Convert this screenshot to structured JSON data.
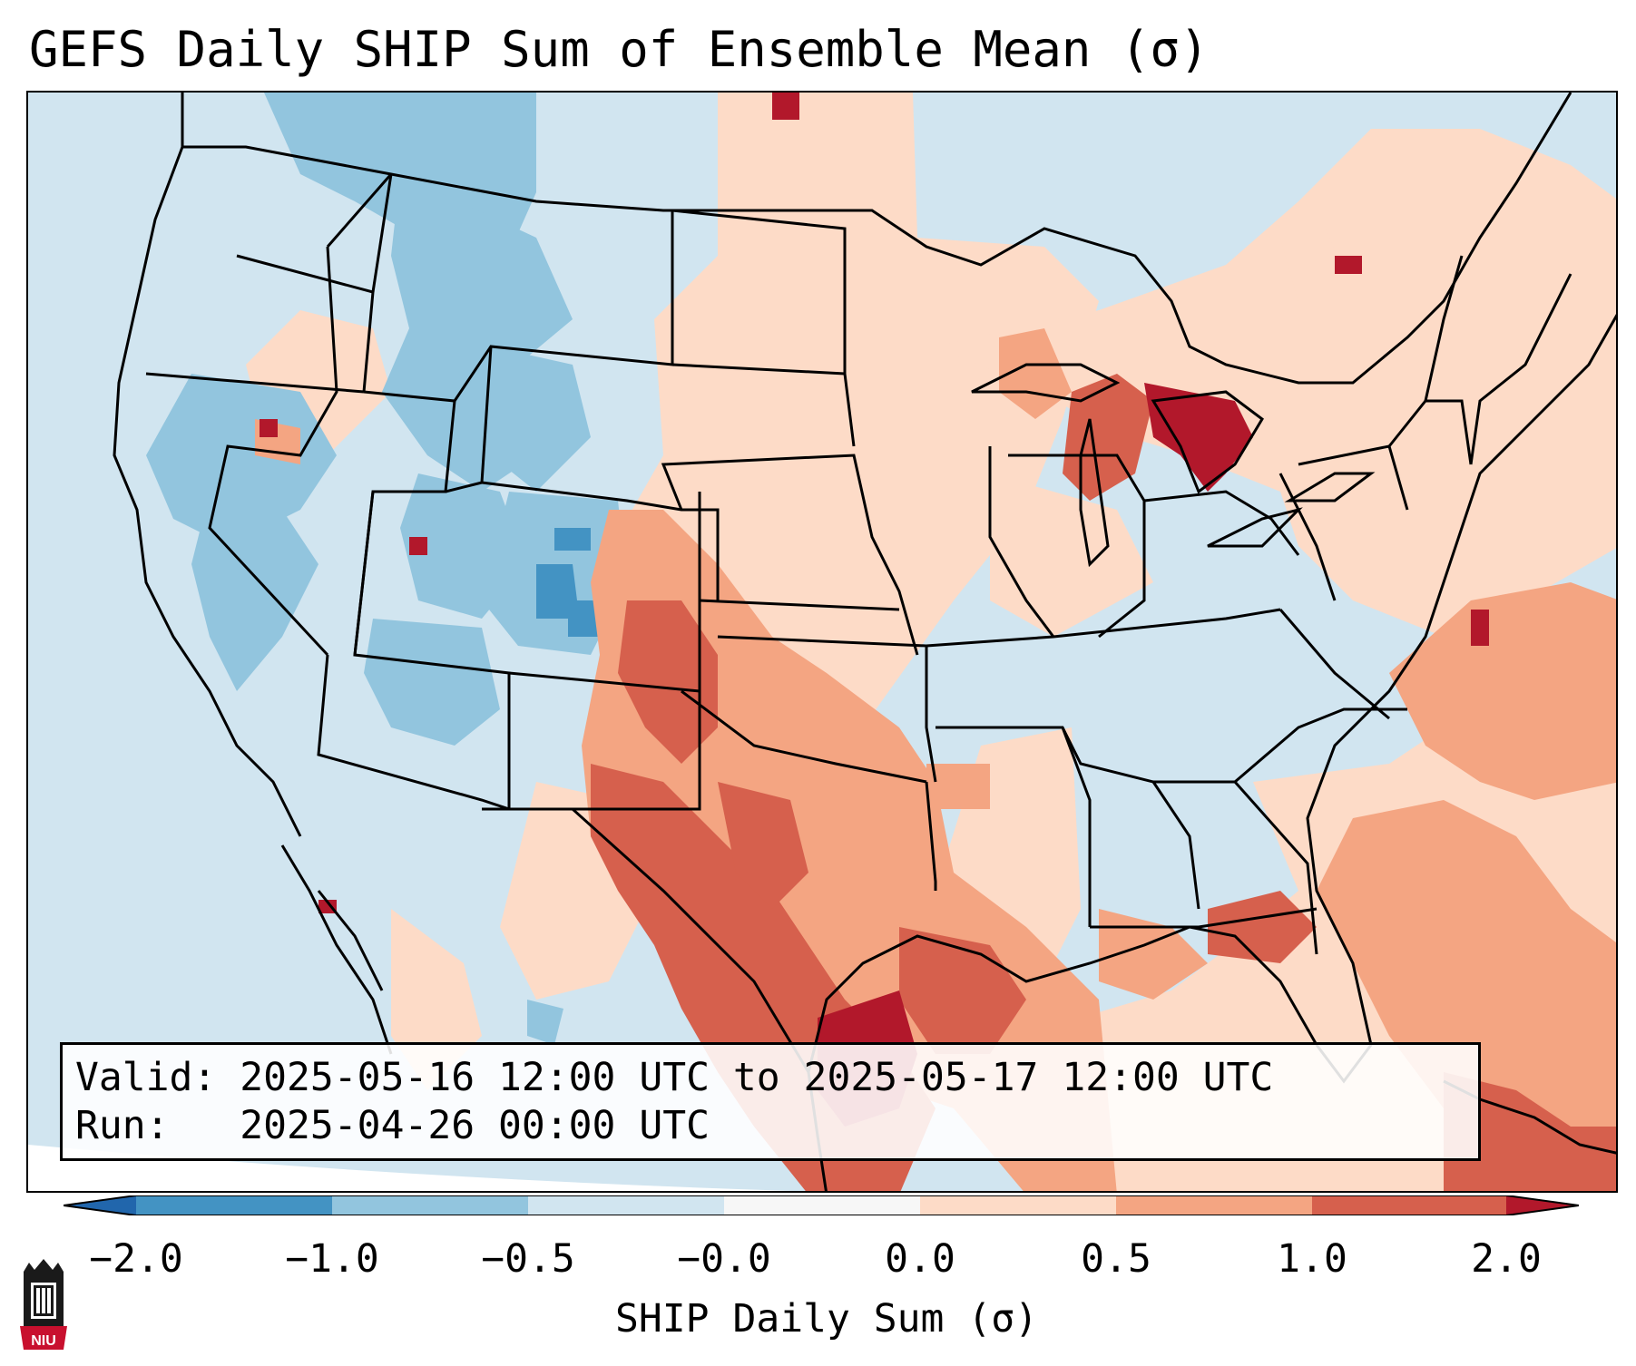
{
  "title": "GEFS Daily SHIP Sum of Ensemble Mean (σ)",
  "info": {
    "valid_label": "Valid:",
    "valid_value": "2025-05-16 12:00 UTC to 2025-05-17 12:00 UTC",
    "run_label": "Run:",
    "run_value": "2025-04-26 00:00 UTC"
  },
  "colorbar": {
    "label": "SHIP Daily Sum (σ)",
    "ticks": [
      "−2.0",
      "−1.0",
      "−0.5",
      "−0.0",
      "0.0",
      "0.5",
      "1.0",
      "2.0"
    ],
    "colors": {
      "below": "#2166ac",
      "neg_2_to_1": "#4393c3",
      "neg_1_to_05": "#92c5de",
      "neg_05_to_0": "#d1e5f0",
      "zero": "#f7f7f7",
      "pos_0_to_05": "#fddbc7",
      "pos_05_to_1": "#f4a582",
      "pos_1_to_2": "#d6604d",
      "above": "#b2182b"
    }
  },
  "map_features": [
    "state-borders",
    "country-borders",
    "coastlines",
    "great-lakes"
  ],
  "logo_text": "NIU"
}
